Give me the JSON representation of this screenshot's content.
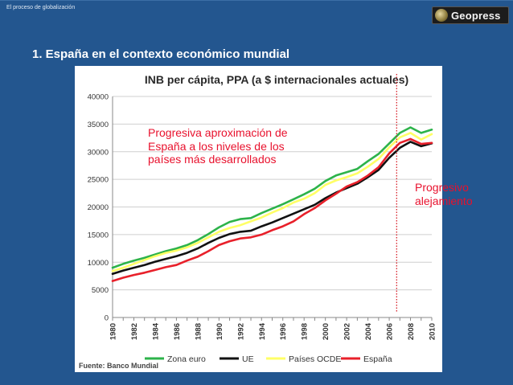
{
  "header": {
    "breadcrumb": "El proceso de globalización",
    "logo_text": "Geopress",
    "section_title": "1.  España en el contexto económico mundial"
  },
  "annotations": {
    "left": [
      "Progresiva aproximación de",
      "España a los niveles de los",
      "países más desarrollados"
    ],
    "right": [
      "Progresivo",
      "alejamiento"
    ]
  },
  "chart_data": {
    "type": "line",
    "title": "INB per cápita, PPA (a $ internacionales actuales)",
    "xlabel": "",
    "ylabel": "",
    "source": "Fuente:  Banco Mundial",
    "ylim": [
      0,
      40000
    ],
    "yticks": [
      0,
      5000,
      10000,
      15000,
      20000,
      25000,
      30000,
      35000,
      40000
    ],
    "x": [
      1980,
      1981,
      1982,
      1983,
      1984,
      1985,
      1986,
      1987,
      1988,
      1989,
      1990,
      1991,
      1992,
      1993,
      1994,
      1995,
      1996,
      1997,
      1998,
      1999,
      2000,
      2001,
      2002,
      2003,
      2004,
      2005,
      2006,
      2007,
      2008,
      2009,
      2010
    ],
    "xticks": [
      1980,
      1982,
      1984,
      1986,
      1988,
      1990,
      1992,
      1994,
      1996,
      1998,
      2000,
      2002,
      2004,
      2006,
      2008,
      2010
    ],
    "grid": true,
    "legend_position": "bottom",
    "marker_year": 2006.7,
    "series": [
      {
        "name": "Zona euro",
        "color": "#2db34a",
        "values": [
          9000,
          9700,
          10300,
          10800,
          11400,
          12000,
          12500,
          13100,
          14000,
          15100,
          16300,
          17300,
          17800,
          18000,
          18900,
          19700,
          20500,
          21400,
          22300,
          23300,
          24700,
          25700,
          26300,
          26900,
          28300,
          29600,
          31500,
          33400,
          34400,
          33400,
          34000
        ]
      },
      {
        "name": "UE",
        "color": "#111111",
        "values": [
          7900,
          8500,
          9000,
          9500,
          10100,
          10600,
          11100,
          11700,
          12500,
          13500,
          14400,
          15100,
          15500,
          15700,
          16500,
          17200,
          18000,
          18800,
          19600,
          20400,
          21600,
          22600,
          23400,
          24200,
          25400,
          26700,
          28900,
          30700,
          31800,
          31000,
          31500
        ]
      },
      {
        "name": "Países OCDE",
        "color": "#ffff66",
        "values": [
          8400,
          9000,
          9700,
          10400,
          11100,
          11700,
          12100,
          12700,
          13500,
          14500,
          15500,
          16200,
          16700,
          17400,
          18100,
          19000,
          19800,
          20800,
          21500,
          22500,
          24000,
          24800,
          25400,
          26100,
          27300,
          28700,
          30800,
          32600,
          33400,
          32200,
          33200
        ]
      },
      {
        "name": "España",
        "color": "#e8202a",
        "values": [
          6600,
          7200,
          7700,
          8100,
          8600,
          9100,
          9500,
          10300,
          11000,
          12000,
          13100,
          13800,
          14300,
          14500,
          15000,
          15800,
          16500,
          17400,
          18700,
          19800,
          21200,
          22400,
          23700,
          24500,
          25700,
          27200,
          29700,
          31600,
          32300,
          31400,
          31600
        ]
      }
    ]
  }
}
